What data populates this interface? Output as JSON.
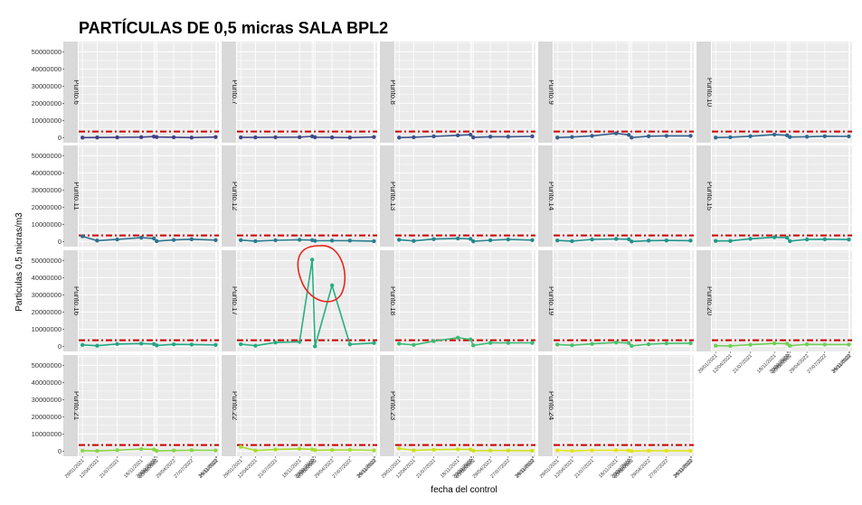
{
  "chart_data": {
    "type": "line",
    "title": "PARTÍCULAS DE 0,5 micras SALA BPL2",
    "xlabel": "fecha del control",
    "ylabel": "Particulas 0,5 micras/m3",
    "ylim": [
      -3000000,
      56000000
    ],
    "yticks": [
      0,
      10000000,
      20000000,
      30000000,
      40000000,
      50000000
    ],
    "ytick_labels": [
      "0",
      "10000000",
      "20000000",
      "30000000",
      "40000000",
      "50000000"
    ],
    "xdomain": [
      "2021-01-10",
      "2022-12-10"
    ],
    "xticks": [
      {
        "date": "2021-01-29",
        "label": "29/01/2021"
      },
      {
        "date": "2021-04-12",
        "label": "12/04/2021"
      },
      {
        "date": "2021-07-21",
        "label": "21/07/2021"
      },
      {
        "date": "2021-11-18",
        "label": "18/11/2021"
      },
      {
        "date": "2022-01-20",
        "label": "20/01/2022"
      },
      {
        "date": "2022-01-27",
        "label": "27/01/2022"
      },
      {
        "date": "2022-02-03",
        "label": "03/02/2022"
      },
      {
        "date": "2022-04-29",
        "label": "29/04/2022"
      },
      {
        "date": "2022-07-27",
        "label": "27/07/2022"
      },
      {
        "date": "2022-11-24",
        "label": "24/11/2022"
      },
      {
        "date": "2022-11-29",
        "label": "29/11/2022"
      }
    ],
    "limit": 3520000,
    "grid": true,
    "dates": [
      "2021-01-29",
      "2021-04-12",
      "2021-07-21",
      "2021-11-18",
      "2022-01-20",
      "2022-02-03",
      "2022-04-29",
      "2022-07-27",
      "2022-11-24"
    ],
    "panels": [
      {
        "label": "Punto.6",
        "color": "#433e85",
        "values": [
          0,
          80000,
          150000,
          250000,
          600000,
          300000,
          200000,
          0,
          300000
        ]
      },
      {
        "label": "Punto.7",
        "color": "#3f4788",
        "values": [
          100000,
          100000,
          200000,
          250000,
          700000,
          200000,
          100000,
          0,
          300000
        ]
      },
      {
        "label": "Punto.8",
        "color": "#3a538b",
        "values": [
          0,
          200000,
          700000,
          1300000,
          1700000,
          100000,
          500000,
          500000,
          700000
        ]
      },
      {
        "label": "Punto.9",
        "color": "#355f8d",
        "values": [
          0,
          300000,
          1000000,
          2500000,
          1600000,
          0,
          800000,
          1000000,
          1000000
        ]
      },
      {
        "label": "Punto.10",
        "color": "#306a8e",
        "values": [
          0,
          200000,
          800000,
          1800000,
          1300000,
          300000,
          500000,
          800000,
          700000
        ]
      },
      {
        "label": "Punto.11",
        "color": "#2c728e",
        "values": [
          3000000,
          500000,
          1200000,
          2200000,
          1800000,
          200000,
          900000,
          1300000,
          800000
        ]
      },
      {
        "label": "Punto.12",
        "color": "#287d8e",
        "values": [
          800000,
          200000,
          700000,
          1000000,
          800000,
          400000,
          500000,
          500000,
          200000
        ]
      },
      {
        "label": "Punto.13",
        "color": "#25858e",
        "values": [
          1000000,
          300000,
          1400000,
          1800000,
          1500000,
          100000,
          700000,
          1200000,
          800000
        ]
      },
      {
        "label": "Punto.14",
        "color": "#21918c",
        "values": [
          600000,
          200000,
          1200000,
          1500000,
          1300000,
          0,
          500000,
          600000,
          500000
        ]
      },
      {
        "label": "Punto.15",
        "color": "#1e9b8a",
        "values": [
          300000,
          300000,
          1600000,
          2500000,
          2200000,
          200000,
          1200000,
          1300000,
          1100000
        ]
      },
      {
        "label": "Punto.16",
        "color": "#22a785",
        "values": [
          800000,
          300000,
          1300000,
          1600000,
          1300000,
          500000,
          1100000,
          1000000,
          800000
        ]
      },
      {
        "label": "Punto.17",
        "color": "#28ae80",
        "values": [
          1200000,
          300000,
          2200000,
          2600000,
          50500000,
          0,
          35500000,
          1100000,
          1900000
        ]
      },
      {
        "label": "Punto.18",
        "color": "#3bbb75",
        "values": [
          1500000,
          800000,
          3000000,
          5000000,
          4000000,
          500000,
          2000000,
          2000000,
          2000000
        ]
      },
      {
        "label": "Punto.19",
        "color": "#4ac16d",
        "values": [
          1000000,
          600000,
          1400000,
          2200000,
          1900000,
          200000,
          1200000,
          1700000,
          1800000
        ]
      },
      {
        "label": "Punto.20",
        "color": "#70cf57",
        "values": [
          300000,
          200000,
          900000,
          1700000,
          1500000,
          300000,
          1100000,
          1000000,
          1000000
        ]
      },
      {
        "label": "Punto.21",
        "color": "#89d548",
        "values": [
          200000,
          100000,
          500000,
          1200000,
          900000,
          100000,
          300000,
          500000,
          400000
        ]
      },
      {
        "label": "Punto.22",
        "color": "#a8db34",
        "values": [
          2500000,
          300000,
          900000,
          1300000,
          1000000,
          500000,
          600000,
          700000,
          400000
        ]
      },
      {
        "label": "Punto.23",
        "color": "#cde11d",
        "values": [
          1500000,
          400000,
          800000,
          1000000,
          900000,
          200000,
          300000,
          300000,
          200000
        ]
      },
      {
        "label": "Punto.24",
        "color": "#e2e418",
        "values": [
          400000,
          100000,
          400000,
          500000,
          300000,
          0,
          200000,
          200000,
          100000
        ]
      }
    ]
  },
  "colors": {
    "panel_bg": "#ebebeb",
    "grid": "#ffffff",
    "strip_bg": "#d9d9d9",
    "limit_line": "#cc0000",
    "annotation": "#e8251c"
  }
}
